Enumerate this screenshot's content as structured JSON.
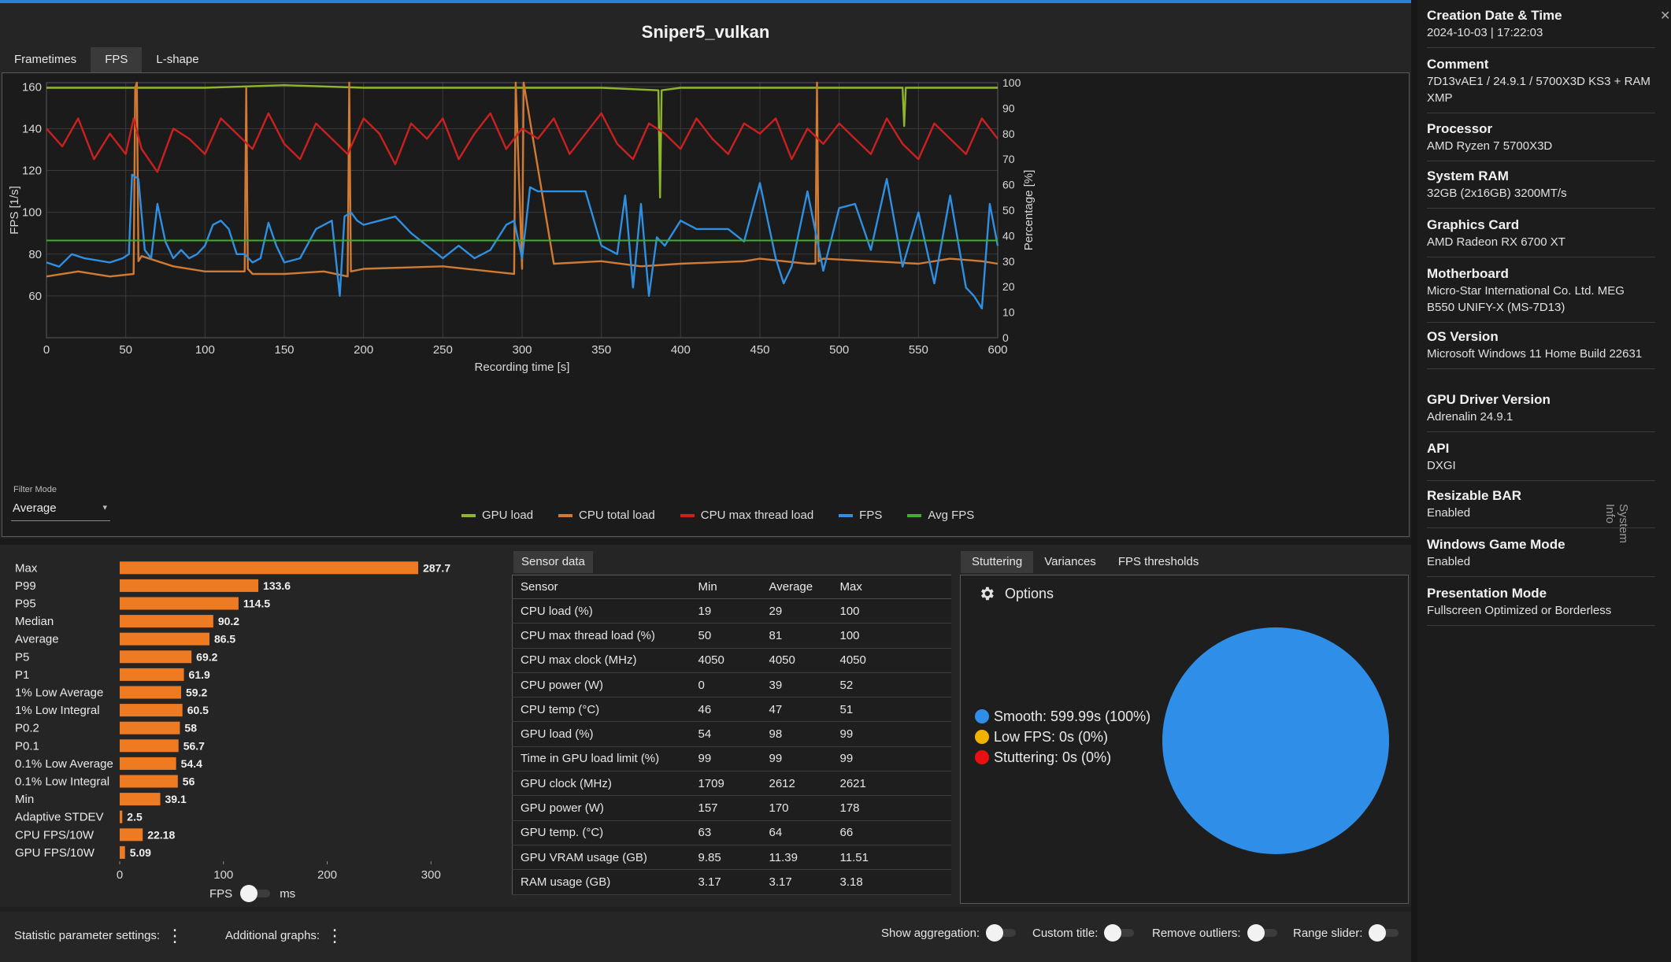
{
  "chart": {
    "title": "Sniper5_vulkan",
    "tabs": [
      "Frametimes",
      "FPS",
      "L-shape"
    ],
    "active_tab": "FPS",
    "filter_label": "Filter Mode",
    "filter_value": "Average",
    "caret": "▾"
  },
  "chart_data": [
    {
      "type": "line",
      "title": "Sniper5_vulkan",
      "xlabel": "Recording time [s]",
      "ylabel": "FPS [1/s]",
      "y2label": "Percentage [%]",
      "xlim": [
        0,
        600
      ],
      "ylim": [
        40,
        162
      ],
      "y2lim": [
        0,
        100
      ],
      "xticks": [
        0,
        50,
        100,
        150,
        200,
        250,
        300,
        350,
        400,
        450,
        500,
        550,
        600
      ],
      "yticks": [
        60,
        80,
        100,
        120,
        140,
        160
      ],
      "y2ticks": [
        0,
        10,
        20,
        30,
        40,
        50,
        60,
        70,
        80,
        90,
        100
      ],
      "series": [
        {
          "name": "GPU load",
          "axis": "percent",
          "color": "#8fb52a",
          "x": [
            0,
            20,
            60,
            100,
            150,
            200,
            250,
            300,
            350,
            386,
            387,
            388,
            400,
            450,
            500,
            540,
            541,
            542,
            600
          ],
          "y": [
            98,
            98,
            98,
            98,
            99,
            98,
            98,
            98,
            98,
            97,
            55,
            97,
            98,
            98,
            98,
            98,
            83,
            98,
            98
          ]
        },
        {
          "name": "CPU total load",
          "axis": "percent",
          "color": "#d07a33",
          "x": [
            0,
            20,
            40,
            55,
            56,
            57,
            58,
            60,
            80,
            100,
            125,
            126,
            127,
            130,
            150,
            175,
            190,
            191,
            192,
            200,
            250,
            295,
            296,
            300,
            301,
            320,
            350,
            375,
            400,
            440,
            450,
            480,
            485,
            486,
            487,
            490,
            520,
            550,
            570,
            590,
            600
          ],
          "y": [
            24,
            26,
            24,
            25,
            98,
            100,
            30,
            32,
            28,
            26,
            26,
            98,
            27,
            25,
            25,
            26,
            24,
            100,
            26,
            27,
            28,
            25,
            100,
            27,
            100,
            29,
            30,
            28,
            29,
            30,
            31,
            29,
            29,
            100,
            30,
            31,
            30,
            29,
            31,
            30,
            29
          ]
        },
        {
          "name": "CPU max thread load",
          "axis": "percent",
          "color": "#cc2020",
          "x": [
            0,
            10,
            20,
            30,
            40,
            50,
            55,
            60,
            70,
            80,
            90,
            100,
            110,
            120,
            130,
            140,
            150,
            160,
            170,
            180,
            190,
            200,
            210,
            220,
            230,
            240,
            250,
            260,
            270,
            280,
            290,
            300,
            310,
            320,
            330,
            340,
            350,
            360,
            370,
            380,
            390,
            400,
            410,
            420,
            430,
            440,
            450,
            460,
            470,
            480,
            490,
            500,
            510,
            520,
            530,
            540,
            550,
            560,
            570,
            580,
            590,
            600
          ],
          "y": [
            82,
            75,
            86,
            70,
            80,
            72,
            86,
            74,
            65,
            82,
            78,
            72,
            86,
            80,
            74,
            88,
            76,
            70,
            84,
            78,
            72,
            86,
            80,
            68,
            84,
            78,
            86,
            70,
            80,
            88,
            74,
            82,
            78,
            86,
            72,
            80,
            88,
            76,
            70,
            84,
            80,
            74,
            86,
            78,
            72,
            84,
            80,
            86,
            70,
            82,
            76,
            84,
            78,
            72,
            86,
            76,
            70,
            84,
            78,
            72,
            86,
            78
          ]
        },
        {
          "name": "FPS",
          "axis": "fps",
          "color": "#2f8fe0",
          "x": [
            0,
            8,
            16,
            24,
            32,
            40,
            48,
            52,
            54,
            58,
            62,
            66,
            70,
            75,
            80,
            85,
            90,
            95,
            100,
            105,
            110,
            115,
            120,
            125,
            130,
            135,
            140,
            145,
            150,
            160,
            170,
            180,
            185,
            188,
            192,
            196,
            200,
            210,
            220,
            230,
            240,
            250,
            260,
            270,
            280,
            290,
            295,
            300,
            305,
            310,
            320,
            330,
            340,
            350,
            360,
            365,
            370,
            375,
            380,
            385,
            390,
            400,
            410,
            420,
            430,
            440,
            450,
            460,
            465,
            470,
            480,
            490,
            500,
            510,
            520,
            530,
            540,
            550,
            560,
            570,
            580,
            585,
            590,
            595,
            600
          ],
          "y": [
            76,
            74,
            80,
            78,
            77,
            76,
            78,
            80,
            118,
            116,
            82,
            78,
            104,
            86,
            78,
            82,
            78,
            80,
            84,
            94,
            96,
            92,
            80,
            80,
            76,
            78,
            95,
            84,
            76,
            78,
            92,
            96,
            60,
            98,
            100,
            96,
            94,
            96,
            98,
            90,
            84,
            78,
            84,
            78,
            82,
            94,
            96,
            78,
            112,
            110,
            110,
            110,
            110,
            84,
            80,
            108,
            64,
            104,
            60,
            88,
            84,
            96,
            92,
            92,
            92,
            86,
            114,
            78,
            66,
            74,
            110,
            72,
            102,
            104,
            82,
            116,
            74,
            100,
            66,
            108,
            64,
            60,
            54,
            104,
            84
          ]
        },
        {
          "name": "Avg FPS",
          "axis": "fps",
          "color": "#3fae2a",
          "x": [
            0,
            600
          ],
          "y": [
            86.5,
            86.5
          ]
        }
      ]
    },
    {
      "type": "bar",
      "orientation": "horizontal",
      "categories": [
        "Max",
        "P99",
        "P95",
        "Median",
        "Average",
        "P5",
        "P1",
        "1% Low Average",
        "1% Low Integral",
        "P0.2",
        "P0.1",
        "0.1% Low Average",
        "0.1% Low Integral",
        "Min",
        "Adaptive STDEV",
        "CPU FPS/10W",
        "GPU FPS/10W"
      ],
      "values": [
        287.7,
        133.6,
        114.5,
        90.2,
        86.5,
        69.2,
        61.9,
        59.2,
        60.5,
        58,
        56.7,
        54.4,
        56,
        39.1,
        2.5,
        22.18,
        5.09
      ],
      "labels": [
        "287.7",
        "133.6",
        "114.5",
        "90.2",
        "86.5",
        "69.2",
        "61.9",
        "59.2",
        "60.5",
        "58",
        "56.7",
        "54.4",
        "56",
        "39.1",
        "2.5",
        "22.18",
        "5.09"
      ],
      "xlim": [
        0,
        340
      ],
      "xticks": [
        0,
        100,
        200,
        300
      ],
      "color": "#ee7a22"
    },
    {
      "type": "pie",
      "slices": [
        {
          "name": "Smooth",
          "value": 100,
          "label": "Smooth:  599.99s (100%)",
          "color": "#2f8fe8"
        },
        {
          "name": "Low FPS",
          "value": 0,
          "label": "Low FPS:  0s (0%)",
          "color": "#f0b400"
        },
        {
          "name": "Stuttering",
          "value": 0,
          "label": "Stuttering:  0s (0%)",
          "color": "#e81010"
        }
      ]
    }
  ],
  "stats": {
    "unit_left": "FPS",
    "unit_right": "ms"
  },
  "sensor": {
    "tab": "Sensor data",
    "headers": [
      "Sensor",
      "Min",
      "Average",
      "Max"
    ],
    "rows": [
      [
        "CPU load (%)",
        "19",
        "29",
        "100"
      ],
      [
        "CPU max thread load (%)",
        "50",
        "81",
        "100"
      ],
      [
        "CPU max clock (MHz)",
        "4050",
        "4050",
        "4050"
      ],
      [
        "CPU power (W)",
        "0",
        "39",
        "52"
      ],
      [
        "CPU temp (°C)",
        "46",
        "47",
        "51"
      ],
      [
        "GPU load (%)",
        "54",
        "98",
        "99"
      ],
      [
        "Time in GPU load limit (%)",
        "99",
        "99",
        "99"
      ],
      [
        "GPU clock (MHz)",
        "1709",
        "2612",
        "2621"
      ],
      [
        "GPU power (W)",
        "157",
        "170",
        "178"
      ],
      [
        "GPU temp. (°C)",
        "63",
        "64",
        "66"
      ],
      [
        "GPU VRAM usage (GB)",
        "9.85",
        "11.39",
        "11.51"
      ],
      [
        "RAM usage (GB)",
        "3.17",
        "3.17",
        "3.18"
      ]
    ]
  },
  "stutter": {
    "tabs": [
      "Stuttering",
      "Variances",
      "FPS thresholds"
    ],
    "active_tab": "Stuttering",
    "options_label": "Options"
  },
  "bottombar": {
    "stat_settings": "Statistic parameter settings:",
    "additional_graphs": "Additional graphs:",
    "show_aggregation": "Show aggregation:",
    "custom_title": "Custom title:",
    "remove_outliers": "Remove outliers:",
    "range_slider": "Range slider:"
  },
  "sysinfo": {
    "side_label": "System Info",
    "close": "✕",
    "items": [
      {
        "label": "Creation Date & Time",
        "value": "2024-10-03  |  17:22:03"
      },
      {
        "label": "Comment",
        "value": "7D13vAE1 /  24.9.1 / 5700X3D KS3 + RAM XMP"
      },
      {
        "label": "Processor",
        "value": "AMD Ryzen 7 5700X3D"
      },
      {
        "label": "System RAM",
        "value": "32GB (2x16GB) 3200MT/s"
      },
      {
        "label": "Graphics Card",
        "value": "AMD Radeon RX 6700 XT"
      },
      {
        "label": "Motherboard",
        "value": "Micro-Star International Co. Ltd. MEG B550 UNIFY-X (MS-7D13)"
      },
      {
        "label": "OS Version",
        "value": "Microsoft Windows 11 Home Build 22631"
      },
      {
        "label": "GPU Driver Version",
        "value": "Adrenalin 24.9.1"
      },
      {
        "label": "API",
        "value": "DXGI"
      },
      {
        "label": "Resizable BAR",
        "value": "Enabled"
      },
      {
        "label": "Windows Game Mode",
        "value": "Enabled"
      },
      {
        "label": "Presentation Mode",
        "value": "Fullscreen Optimized or Borderless"
      }
    ]
  }
}
